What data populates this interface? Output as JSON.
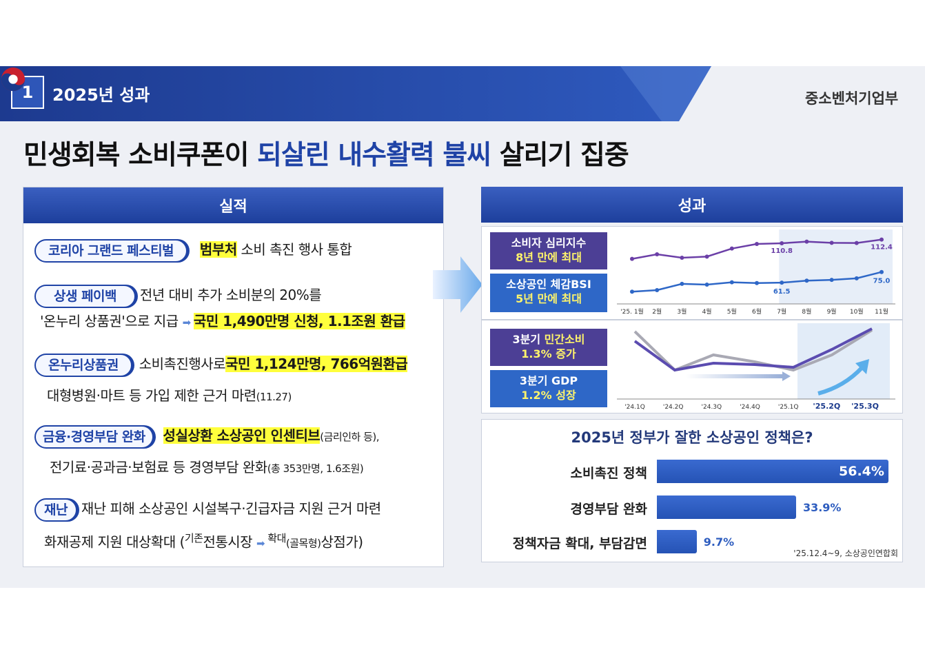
{
  "header": {
    "section_number": "1",
    "section_label": "2025년 성과",
    "ministry": "중소벤처기업부"
  },
  "title": {
    "part1": "민생회복 소비쿠폰이 ",
    "highlight": "되살린 내수활력 불씨",
    "part2": " 살리기 집중"
  },
  "left_panel": {
    "heading": "실적",
    "items": [
      {
        "tag": "코리아 그랜드 페스티벌",
        "hl": "범부처",
        "text": " 소비 촉진 행사 통합"
      },
      {
        "tag": "상생 페이백",
        "text": " 전년 대비 추가 소비분의 20%를",
        "line2": "'온누리 상품권'으로 지급",
        "line2_hl": "국민 1,490만명 신청, 1.1조원 환급"
      },
      {
        "tag": "온누리상품권",
        "text": " 소비촉진행사로",
        "hl": "국민 1,124만명, 766억원환급",
        "line2": "대형병원·마트 등 가입 제한 근거 마련",
        "line2_small": "(11.27)"
      },
      {
        "tag": "금융·경영부담 완화",
        "hl": "성실상환 소상공인 인센티브",
        "small": "(금리인하 등),",
        "line2": "전기료·공과금·보험료 등 경영부담 완화",
        "line2_small": "(총 353만명, 1.6조원)"
      },
      {
        "tag": "재난",
        "text": " 재난 피해 소상공인 시설복구·긴급자금 지원 근거 마련",
        "line2a": "화재공제 지원 대상확대 (",
        "line2_small_a": "기존",
        "line2b": "전통시장 ",
        "line2_small_b": "확대",
        "line2c": "(골목형)",
        "line2d": "상점가)"
      }
    ]
  },
  "right_panel": {
    "heading": "성과",
    "chart1": {
      "badge1_a": "소비자 심리지수",
      "badge1_b": "8년 만에 최대",
      "badge2_a": "소상공인 체감BSI",
      "badge2_b": "5년 만에 최대"
    },
    "chart2": {
      "badge1_a": "3분기 ",
      "badge1_y": "민간소비",
      "badge1_b": "1.3% 증가",
      "badge2_a": "3분기 GDP",
      "badge2_b": "1.2% 성장"
    },
    "survey": {
      "title": "2025년 정부가 잘한 소상공인 정책은?",
      "source": "'25.12.4~9,  소상공인연합회"
    }
  },
  "chart_data": [
    {
      "type": "line",
      "x": [
        "'25. 1월",
        "2월",
        "3월",
        "4월",
        "5월",
        "6월",
        "7월",
        "8월",
        "9월",
        "10월",
        "11월"
      ],
      "series": [
        {
          "values": [
            104,
            106,
            104.5,
            105,
            108.5,
            110.5,
            110.8,
            111.5,
            111,
            110.9,
            112.4
          ],
          "color": "#6b3fa7"
        },
        {
          "values": [
            50,
            52,
            60,
            59,
            62,
            61,
            61.5,
            64,
            65,
            67,
            75.0
          ],
          "color": "#2e67c7"
        }
      ],
      "labels": [
        "110.8",
        "112.4",
        "61.5",
        "75.0"
      ]
    },
    {
      "type": "line",
      "x": [
        "'24.1Q",
        "'24.2Q",
        "'24.3Q",
        "'24.4Q",
        "'25.1Q",
        "'25.2Q",
        "'25.3Q"
      ]
    },
    {
      "type": "bar",
      "categories": [
        "소비촉진 정책",
        "경영부담 완화",
        "정책자금 확대, 부담감면"
      ],
      "values": [
        56.4,
        33.9,
        9.7
      ],
      "value_labels": [
        "56.4%",
        "33.9%",
        "9.7%"
      ]
    }
  ]
}
